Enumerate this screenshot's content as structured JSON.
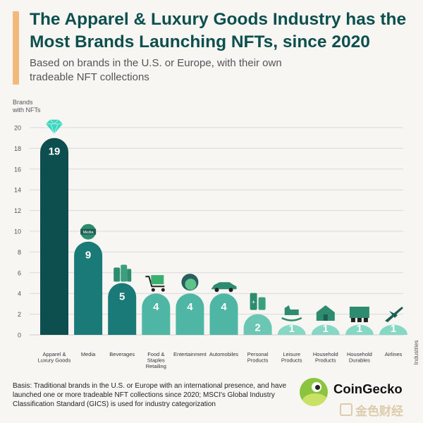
{
  "header": {
    "title": "The Apparel & Luxury Goods Industry has the Most Brands Launching NFTs, since 2020",
    "subtitle": "Based on brands in the U.S. or Europe, with their own tradeable NFT collections"
  },
  "chart_data": {
    "type": "bar",
    "ylabel": "Brands with NFTs",
    "xlabel": "Industries",
    "ylim": [
      0,
      20
    ],
    "yticks": [
      0,
      2,
      4,
      6,
      8,
      10,
      12,
      14,
      16,
      18,
      20
    ],
    "grid": true,
    "categories": [
      "Apparel & Luxury Goods",
      "Media",
      "Beverages",
      "Food & Staples Retailing",
      "Entertainment",
      "Automobiles",
      "Personal Products",
      "Leisure Products",
      "Household Products",
      "Household Durables",
      "Airlines"
    ],
    "values": [
      19,
      9,
      5,
      4,
      4,
      4,
      2,
      1,
      1,
      1,
      1
    ],
    "media_badge": "Media",
    "colors": {
      "dark": "#0d4f4e",
      "mid": "#1a7a78",
      "light": "#4fb6a6",
      "lighter": "#6cc6b4",
      "pale": "#86d8c4",
      "icon": "#2d8c6e",
      "grid": "#d9d9d9",
      "axis_text": "#555555"
    },
    "icons": [
      "diamond-icon",
      "media-globe-icon",
      "beverage-bottles-icon",
      "shopping-cart-icon",
      "mask-face-icon",
      "car-icon",
      "cosmetics-bottles-icon",
      "rocking-horse-icon",
      "house-icon",
      "appliances-icon",
      "airplane-icon"
    ]
  },
  "footnote": "Basis: Traditional brands in the U.S. or Europe with an international presence, and have launched one or more tradeable NFT collections since 2020; MSCI's Global Industry Classification Standard (GICS) is used for industry categorization",
  "branding": {
    "name": "CoinGecko",
    "watermark": "金色财经"
  }
}
